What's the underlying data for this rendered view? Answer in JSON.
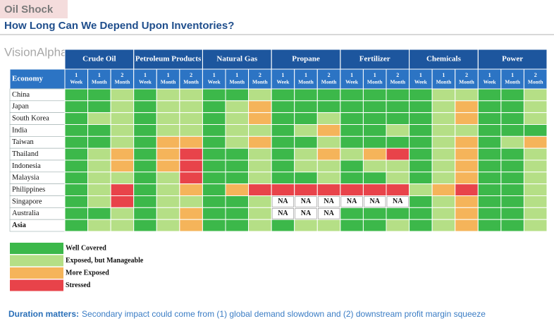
{
  "header": {
    "tag": "Oil Shock",
    "title": "How Long Can We Depend Upon Inventories?",
    "watermark": "VisionAlpha"
  },
  "table": {
    "corner": "Economy",
    "groups": [
      "Crude Oil",
      "Petroleum Products",
      "Natural Gas",
      "Propane",
      "Fertilizer",
      "Chemicals",
      "Power"
    ],
    "subcolumns": [
      [
        "1",
        "Week"
      ],
      [
        "1",
        "Month"
      ],
      [
        "2",
        "Month"
      ]
    ],
    "rows": [
      "China",
      "Japan",
      "South Korea",
      "India",
      "Taiwan",
      "Thailand",
      "Indonesia",
      "Malaysia",
      "Philippines",
      "Singapore",
      "Australia",
      "Asia"
    ],
    "cells": [
      [
        "#3cb84a",
        "#3cb84a",
        "#b5df86",
        "#3cb84a",
        "#b5df86",
        "#b5df86",
        "#3cb84a",
        "#3cb84a",
        "#b5df86",
        "#3cb84a",
        "#3cb84a",
        "#3cb84a",
        "#3cb84a",
        "#3cb84a",
        "#3cb84a",
        "#3cb84a",
        "#b5df86",
        "#b5df86",
        "#3cb84a",
        "#3cb84a",
        "#b5df86"
      ],
      [
        "#3cb84a",
        "#3cb84a",
        "#b5df86",
        "#3cb84a",
        "#b5df86",
        "#b5df86",
        "#3cb84a",
        "#b5df86",
        "#f5b45a",
        "#3cb84a",
        "#3cb84a",
        "#3cb84a",
        "#3cb84a",
        "#3cb84a",
        "#3cb84a",
        "#3cb84a",
        "#b5df86",
        "#f5b45a",
        "#3cb84a",
        "#3cb84a",
        "#b5df86"
      ],
      [
        "#3cb84a",
        "#b5df86",
        "#b5df86",
        "#3cb84a",
        "#b5df86",
        "#b5df86",
        "#3cb84a",
        "#b5df86",
        "#f5b45a",
        "#3cb84a",
        "#3cb84a",
        "#b5df86",
        "#3cb84a",
        "#3cb84a",
        "#3cb84a",
        "#3cb84a",
        "#b5df86",
        "#f5b45a",
        "#3cb84a",
        "#3cb84a",
        "#b5df86"
      ],
      [
        "#3cb84a",
        "#3cb84a",
        "#b5df86",
        "#3cb84a",
        "#b5df86",
        "#b5df86",
        "#3cb84a",
        "#b5df86",
        "#b5df86",
        "#3cb84a",
        "#b5df86",
        "#f5b45a",
        "#3cb84a",
        "#3cb84a",
        "#b5df86",
        "#3cb84a",
        "#b5df86",
        "#b5df86",
        "#3cb84a",
        "#3cb84a",
        "#3cb84a"
      ],
      [
        "#3cb84a",
        "#3cb84a",
        "#b5df86",
        "#3cb84a",
        "#f5b45a",
        "#f5b45a",
        "#3cb84a",
        "#b5df86",
        "#f5b45a",
        "#3cb84a",
        "#3cb84a",
        "#b5df86",
        "#3cb84a",
        "#3cb84a",
        "#3cb84a",
        "#3cb84a",
        "#b5df86",
        "#f5b45a",
        "#3cb84a",
        "#b5df86",
        "#f5b45a"
      ],
      [
        "#3cb84a",
        "#b5df86",
        "#f5b45a",
        "#3cb84a",
        "#f5b45a",
        "#e8434a",
        "#3cb84a",
        "#3cb84a",
        "#b5df86",
        "#3cb84a",
        "#b5df86",
        "#f5b45a",
        "#b5df86",
        "#f5b45a",
        "#e8434a",
        "#3cb84a",
        "#b5df86",
        "#f5b45a",
        "#3cb84a",
        "#3cb84a",
        "#b5df86"
      ],
      [
        "#3cb84a",
        "#b5df86",
        "#f5b45a",
        "#3cb84a",
        "#f5b45a",
        "#e8434a",
        "#3cb84a",
        "#3cb84a",
        "#b5df86",
        "#3cb84a",
        "#b5df86",
        "#b5df86",
        "#3cb84a",
        "#b5df86",
        "#b5df86",
        "#3cb84a",
        "#b5df86",
        "#f5b45a",
        "#3cb84a",
        "#3cb84a",
        "#b5df86"
      ],
      [
        "#3cb84a",
        "#b5df86",
        "#b5df86",
        "#3cb84a",
        "#b5df86",
        "#e8434a",
        "#3cb84a",
        "#3cb84a",
        "#b5df86",
        "#3cb84a",
        "#3cb84a",
        "#b5df86",
        "#3cb84a",
        "#3cb84a",
        "#b5df86",
        "#3cb84a",
        "#b5df86",
        "#f5b45a",
        "#3cb84a",
        "#3cb84a",
        "#b5df86"
      ],
      [
        "#3cb84a",
        "#b5df86",
        "#e8434a",
        "#3cb84a",
        "#b5df86",
        "#f5b45a",
        "#3cb84a",
        "#f5b45a",
        "#e8434a",
        "#e8434a",
        "#e8434a",
        "#e8434a",
        "#e8434a",
        "#e8434a",
        "#e8434a",
        "#b5df86",
        "#f5b45a",
        "#e8434a",
        "#3cb84a",
        "#3cb84a",
        "#b5df86"
      ],
      [
        "#3cb84a",
        "#b5df86",
        "#e8434a",
        "#3cb84a",
        "#b5df86",
        "#b5df86",
        "#3cb84a",
        "#3cb84a",
        "#b5df86",
        "NA",
        "NA",
        "NA",
        "NA",
        "NA",
        "NA",
        "#3cb84a",
        "#b5df86",
        "#f5b45a",
        "#3cb84a",
        "#3cb84a",
        "#b5df86"
      ],
      [
        "#3cb84a",
        "#3cb84a",
        "#b5df86",
        "#3cb84a",
        "#b5df86",
        "#f5b45a",
        "#3cb84a",
        "#3cb84a",
        "#b5df86",
        "NA",
        "NA",
        "NA",
        "#3cb84a",
        "#3cb84a",
        "#3cb84a",
        "#3cb84a",
        "#b5df86",
        "#f5b45a",
        "#3cb84a",
        "#3cb84a",
        "#b5df86"
      ],
      [
        "#3cb84a",
        "#b5df86",
        "#b5df86",
        "#3cb84a",
        "#b5df86",
        "#f5b45a",
        "#3cb84a",
        "#3cb84a",
        "#b5df86",
        "#3cb84a",
        "#b5df86",
        "#b5df86",
        "#3cb84a",
        "#3cb84a",
        "#b5df86",
        "#3cb84a",
        "#b5df86",
        "#f5b45a",
        "#3cb84a",
        "#3cb84a",
        "#b5df86"
      ]
    ]
  },
  "legend": [
    {
      "label": "Well Covered",
      "color": "#3cb84a"
    },
    {
      "label": "Exposed, but Manageable",
      "color": "#b5df86"
    },
    {
      "label": "More Exposed",
      "color": "#f5b45a"
    },
    {
      "label": "Stressed",
      "color": "#e8434a"
    }
  ],
  "footer": {
    "lead": "Duration matters:",
    "text": "Secondary impact could come from (1) global demand slowdown and (2) downstream profit margin squeeze"
  }
}
